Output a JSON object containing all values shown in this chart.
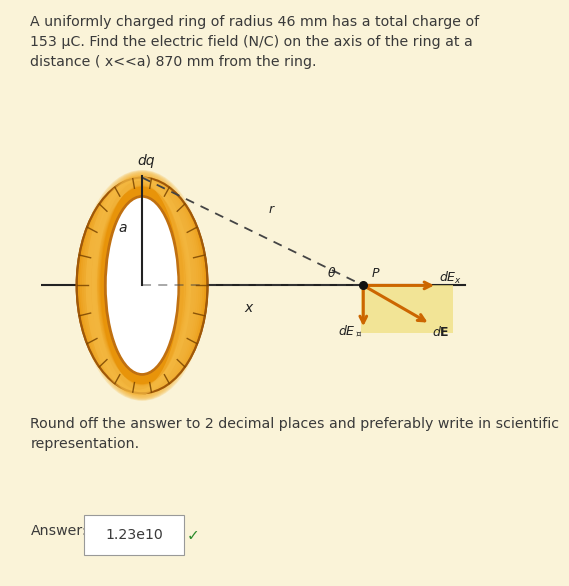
{
  "bg_color": "#faf3d8",
  "panel_color": "#ffffff",
  "title_text": "A uniformly charged ring of radius 46 mm has a total charge of\n153 μC. Find the electric field (N/C) on the axis of the ring at a\ndistance ( x<<a) 870 mm from the ring.",
  "title_fontsize": 10.2,
  "title_color": "#3a3a3a",
  "round_text": "Round off the answer to 2 decimal places and preferably write in scientific\nrepresentation.",
  "answer_label": "Answer:",
  "answer_value": "1.23e10",
  "answer_fontsize": 10.2,
  "ring_outer_color": "#e8940a",
  "ring_mid_color": "#f5b942",
  "ring_inner_edge": "#c07010",
  "ring_shadow": "#a05808",
  "hatch_color": "#7a4500",
  "line_color": "#222222",
  "dashed_color": "#444444",
  "point_color": "#111111",
  "vector_color": "#cc6600",
  "label_color": "#222222",
  "box_color": "#f0e080",
  "panel_border": "#cccccc"
}
